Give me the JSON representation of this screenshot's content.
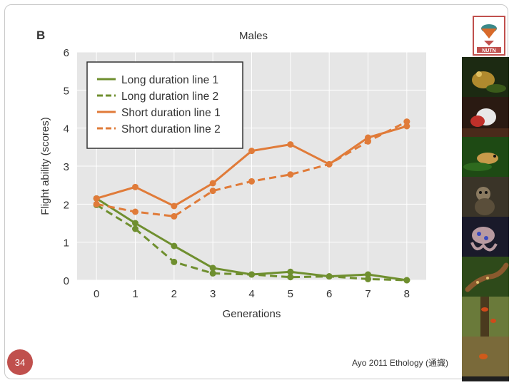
{
  "slide": {
    "figure_letter": "B",
    "figure_title": "Males",
    "slide_number": "34",
    "caption": "Ayo 2011 Ethology (通識)",
    "logo_text": "NUTN"
  },
  "colors": {
    "long": "#6f8f2f",
    "short": "#e07b39",
    "plot_bg": "#e6e6e6",
    "grid": "#ffffff",
    "slide_number_bg": "#c0504d"
  },
  "photo_strip": [
    {
      "subject": "frog-icon"
    },
    {
      "subject": "bird-icon"
    },
    {
      "subject": "frog-icon"
    },
    {
      "subject": "monkey-icon"
    },
    {
      "subject": "octopus-icon"
    },
    {
      "subject": "lizard-icon"
    },
    {
      "subject": "insect-icon"
    }
  ],
  "chart_data": {
    "type": "line",
    "title": "Males",
    "xlabel": "Generations",
    "ylabel": "Flight ability (scores)",
    "x": [
      0,
      1,
      2,
      3,
      4,
      5,
      6,
      7,
      8
    ],
    "xlim": [
      -0.5,
      8.5
    ],
    "ylim": [
      0,
      6
    ],
    "yticks": [
      0,
      1,
      2,
      3,
      4,
      5,
      6
    ],
    "grid": true,
    "legend_position": "top-left",
    "series": [
      {
        "name": "Long duration line 1",
        "group": "long",
        "dash": "solid",
        "values": [
          2.15,
          1.5,
          0.9,
          0.32,
          0.15,
          0.22,
          0.1,
          0.15,
          0.0
        ]
      },
      {
        "name": "Long duration line 2",
        "group": "long",
        "dash": "dashed",
        "values": [
          1.98,
          1.35,
          0.48,
          0.18,
          0.15,
          0.08,
          0.1,
          0.03,
          0.0
        ]
      },
      {
        "name": "Short duration line 1",
        "group": "short",
        "dash": "solid",
        "values": [
          2.15,
          2.45,
          1.95,
          2.55,
          3.4,
          3.57,
          3.05,
          3.75,
          4.05
        ]
      },
      {
        "name": "Short duration line 2",
        "group": "short",
        "dash": "dashed",
        "values": [
          2.0,
          1.8,
          1.68,
          2.35,
          2.6,
          2.78,
          3.05,
          3.65,
          4.17
        ]
      }
    ]
  }
}
